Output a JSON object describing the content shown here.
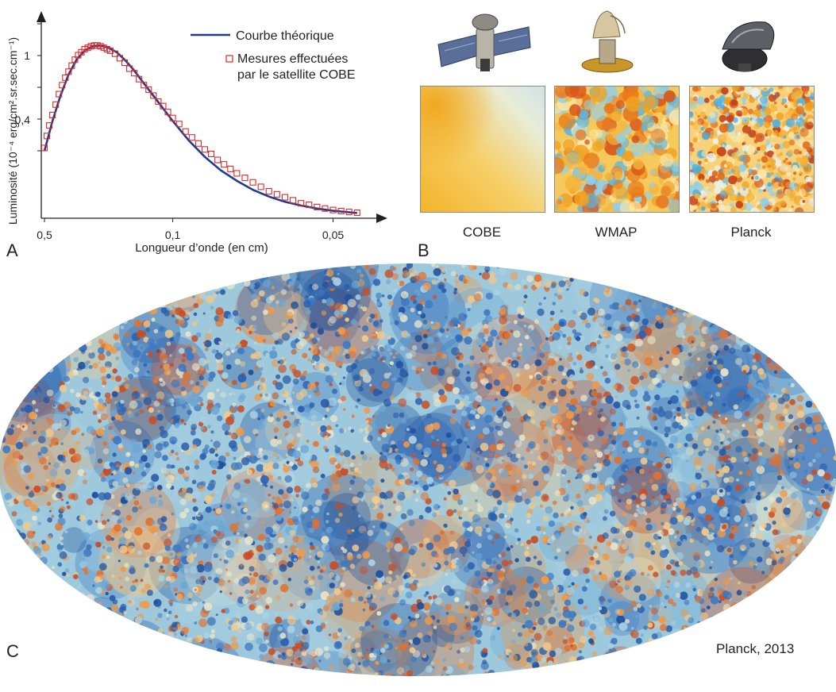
{
  "panels": {
    "a": "A",
    "b": "B",
    "c": "C"
  },
  "chart_data": {
    "type": "line",
    "xlabel": "Longueur d’onde (en cm)",
    "ylabel": "Luminosité (10⁻⁴ erg/cm².sr.sec.cm⁻¹)",
    "x_ticks": [
      "0,5",
      "0,1",
      "0,05"
    ],
    "y_ticks": [
      "1",
      "0,4"
    ],
    "legend": {
      "placement": "top-right",
      "entries": [
        {
          "label": "Courbe théorique",
          "color": "#1f3d8c",
          "kind": "line"
        },
        {
          "label": "Mesures effectuées",
          "label2": "par le satellite COBE",
          "color": "#d92b2b",
          "kind": "square-marker"
        }
      ]
    },
    "series": [
      {
        "name": "Courbe théorique",
        "x_wavenumber": [
          2.0,
          2.5,
          3,
          3.5,
          4,
          4.5,
          5,
          5.5,
          6,
          6.5,
          7,
          7.5,
          8,
          8.5,
          9,
          9.5,
          10,
          11,
          12,
          13,
          14,
          15,
          16,
          17,
          18,
          19,
          20,
          21,
          21.5
        ],
        "y": [
          0.45,
          0.65,
          0.82,
          0.96,
          1.06,
          1.12,
          1.15,
          1.155,
          1.14,
          1.11,
          1.06,
          1.0,
          0.93,
          0.86,
          0.79,
          0.72,
          0.65,
          0.52,
          0.41,
          0.32,
          0.25,
          0.19,
          0.145,
          0.11,
          0.085,
          0.065,
          0.05,
          0.04,
          0.035
        ]
      },
      {
        "name": "Mesures effectuées par le satellite COBE",
        "x_wavenumber": [
          2.0,
          2.15,
          2.3,
          2.5,
          2.7,
          2.9,
          3.1,
          3.3,
          3.5,
          3.7,
          3.9,
          4.1,
          4.3,
          4.5,
          4.7,
          4.9,
          5.1,
          5.3,
          5.5,
          5.7,
          5.9,
          6.1,
          6.4,
          6.7,
          7.0,
          7.3,
          7.6,
          7.9,
          8.2,
          8.5,
          8.8,
          9.1,
          9.4,
          9.7,
          10.0,
          10.4,
          10.8,
          11.2,
          11.6,
          12.0,
          12.4,
          12.8,
          13.2,
          13.6,
          14.0,
          14.5,
          15.0,
          15.5,
          16.0,
          16.5,
          17.0,
          17.5,
          18.0,
          18.5,
          19.0,
          19.5,
          20.0,
          20.5,
          21.0,
          21.5
        ],
        "y": [
          0.47,
          0.55,
          0.62,
          0.69,
          0.76,
          0.83,
          0.89,
          0.94,
          0.98,
          1.02,
          1.06,
          1.09,
          1.11,
          1.13,
          1.14,
          1.15,
          1.155,
          1.155,
          1.15,
          1.14,
          1.13,
          1.12,
          1.1,
          1.07,
          1.04,
          1.0,
          0.97,
          0.93,
          0.89,
          0.86,
          0.82,
          0.78,
          0.75,
          0.71,
          0.67,
          0.63,
          0.58,
          0.54,
          0.5,
          0.46,
          0.43,
          0.39,
          0.36,
          0.33,
          0.3,
          0.27,
          0.24,
          0.21,
          0.18,
          0.16,
          0.14,
          0.12,
          0.1,
          0.09,
          0.075,
          0.065,
          0.055,
          0.048,
          0.042,
          0.037
        ]
      }
    ],
    "xlim_wavenumber": [
      1.8,
      22.5
    ],
    "ylim": [
      0,
      1.3
    ],
    "grid": false
  },
  "panel_b": {
    "maps": [
      {
        "label": "COBE"
      },
      {
        "label": "WMAP"
      },
      {
        "label": "Planck"
      }
    ]
  },
  "panel_c": {
    "credit": "Planck, 2013"
  }
}
